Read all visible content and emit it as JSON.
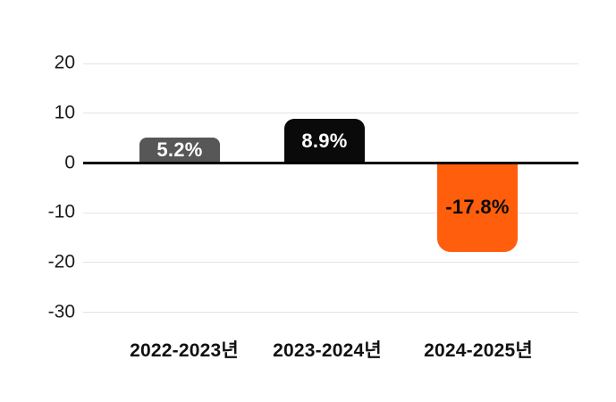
{
  "chart_data": {
    "type": "bar",
    "title": "",
    "categories": [
      "2022-2023년",
      "2023-2024년",
      "2024-2025년"
    ],
    "values": [
      5.2,
      8.9,
      -17.8
    ],
    "value_labels": [
      "5.2%",
      "8.9%",
      "-17.8%"
    ],
    "bar_colors": [
      "#575757",
      "#0A0A0A",
      "#FF5E0D"
    ],
    "value_label_colors": [
      "#FFFFFF",
      "#FFFFFF",
      "#0B0B0B"
    ],
    "yticks": [
      20,
      10,
      0,
      -10,
      -20,
      -30
    ],
    "ytick_labels": [
      "20",
      "10",
      "0",
      "-10",
      "-20",
      "-30"
    ],
    "ylim": [
      -35,
      25
    ],
    "grid": "horizontal",
    "legend": "none",
    "colors": {
      "background": "#FFFFFF",
      "gridline": "#E4E4E4",
      "zero_line": "#000000",
      "axis_text": "#1A1A1A",
      "category_text": "#111111"
    }
  }
}
